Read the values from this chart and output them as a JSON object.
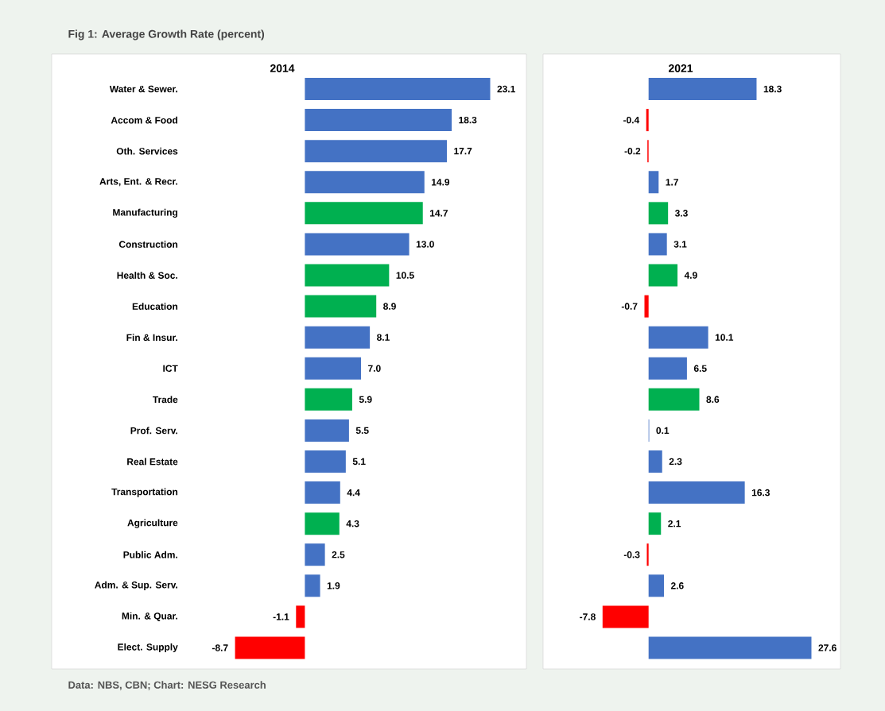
{
  "chart_data": [
    {
      "type": "bar",
      "orientation": "horizontal",
      "tick_labels": "y",
      "title": "Fig 1: Average Growth Rate (percent)",
      "subtitle": "2014",
      "categories": [
        "Water & Sewer.",
        "Accom & Food",
        "Oth. Services",
        "Arts, Ent. & Recr.",
        "Manufacturing",
        "Construction",
        "Health & Soc.",
        "Education",
        "Fin & Insur.",
        "ICT",
        "Trade",
        "Prof. Serv.",
        "Real Estate",
        "Transportation",
        "Agriculture",
        "Public Adm.",
        "Adm. & Sup. Serv.",
        "Min. & Quar.",
        "Elect. Supply"
      ],
      "values": [
        23.1,
        18.3,
        17.7,
        14.9,
        14.7,
        13.0,
        10.5,
        8.9,
        8.1,
        7.0,
        5.9,
        5.5,
        5.1,
        4.4,
        4.3,
        2.5,
        1.9,
        -1.1,
        -8.7
      ],
      "value_labels": [
        "23.1",
        "18.3",
        "17.7",
        "14.9",
        "14.7",
        "13.0",
        "10.5",
        "8.9",
        "8.1",
        "7.0",
        "5.9",
        "5.5",
        "5.1",
        "4.4",
        "4.3",
        "2.5",
        "1.9",
        "-1.1",
        "-8.7"
      ],
      "colors": [
        "#4472c4",
        "#4472c4",
        "#4472c4",
        "#4472c4",
        "#00b050",
        "#4472c4",
        "#00b050",
        "#00b050",
        "#4472c4",
        "#4472c4",
        "#00b050",
        "#4472c4",
        "#4472c4",
        "#4472c4",
        "#00b050",
        "#4472c4",
        "#4472c4",
        "#ff0000",
        "#ff0000"
      ],
      "annotations": [
        "Data: NBS, CBN; Chart: NESG Research"
      ]
    },
    {
      "type": "bar",
      "orientation": "horizontal",
      "title": "2021",
      "categories": [
        null,
        null,
        null,
        null,
        null,
        null,
        null,
        null,
        null,
        null,
        null,
        null,
        null,
        null,
        null,
        null,
        null,
        null,
        null
      ],
      "values": [
        18.3,
        -0.4,
        -0.2,
        1.7,
        3.3,
        3.1,
        4.9,
        -0.7,
        10.1,
        6.5,
        8.6,
        0.1,
        2.3,
        16.3,
        2.1,
        -0.3,
        2.6,
        -7.8,
        27.6
      ],
      "value_labels": [
        "18.3",
        "-0.4",
        "-0.2",
        "1.7",
        "3.3",
        "3.1",
        "4.9",
        "-0.7",
        "10.1",
        "6.5",
        "8.6",
        "0.1",
        "2.3",
        "16.3",
        "2.1",
        "-0.3",
        "2.6",
        "-7.8",
        "27.6"
      ],
      "colors": [
        "#4472c4",
        "#ff0000",
        "#ff0000",
        "#4472c4",
        "#00b050",
        "#4472c4",
        "#00b050",
        "#ff0000",
        "#4472c4",
        "#4472c4",
        "#00b050",
        "#4472c4",
        "#4472c4",
        "#4472c4",
        "#00b050",
        "#ff0000",
        "#4472c4",
        "#ff0000",
        "#4472c4"
      ]
    }
  ]
}
